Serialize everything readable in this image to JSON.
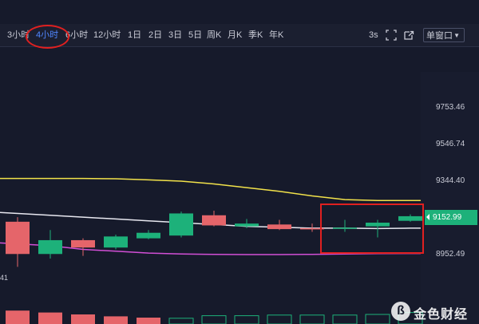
{
  "toolbar": {
    "timeframes": [
      {
        "label": "3小时",
        "active": false
      },
      {
        "label": "4小时",
        "active": true
      },
      {
        "label": "6小时",
        "active": false
      },
      {
        "label": "12小时",
        "active": false
      },
      {
        "label": "1日",
        "active": false
      },
      {
        "label": "2日",
        "active": false
      },
      {
        "label": "3日",
        "active": false
      },
      {
        "label": "5日",
        "active": false
      },
      {
        "label": "周K",
        "active": false
      },
      {
        "label": "月K",
        "active": false
      },
      {
        "label": "季K",
        "active": false
      },
      {
        "label": "年K",
        "active": false
      }
    ],
    "interval": "3s",
    "window_mode": "单窗口"
  },
  "yaxis": {
    "ticks": [
      "9753.46",
      "9546.74",
      "9344.40",
      "8952.49"
    ]
  },
  "current_price": "9152.99",
  "left_fragment": "41",
  "watermark": "金色财经",
  "colors": {
    "up": "#1db17a",
    "down": "#e5656a",
    "ma_yellow": "#f2e24a",
    "ma_white": "#e8e8f0",
    "ma_magenta": "#d24fd6",
    "annotation": "#e02020"
  },
  "chart_data": {
    "type": "candlestick",
    "yticks": [
      9753.46,
      9546.74,
      9344.4,
      8952.49
    ],
    "candles": [
      {
        "dir": "down",
        "open": 9135,
        "close": 8960,
        "high": 9160,
        "low": 8890
      },
      {
        "dir": "up",
        "open": 8960,
        "close": 9035,
        "high": 9090,
        "low": 8935
      },
      {
        "dir": "down",
        "open": 9035,
        "close": 8995,
        "high": 9045,
        "low": 8950
      },
      {
        "dir": "up",
        "open": 8995,
        "close": 9055,
        "high": 9065,
        "low": 8985
      },
      {
        "dir": "up",
        "open": 9045,
        "close": 9075,
        "high": 9090,
        "low": 9040
      },
      {
        "dir": "up",
        "open": 9060,
        "close": 9180,
        "high": 9190,
        "low": 9050
      },
      {
        "dir": "down",
        "open": 9170,
        "close": 9115,
        "high": 9195,
        "low": 9110
      },
      {
        "dir": "up",
        "open": 9110,
        "close": 9125,
        "high": 9150,
        "low": 9100
      },
      {
        "dir": "down",
        "open": 9120,
        "close": 9095,
        "high": 9145,
        "low": 9090
      },
      {
        "dir": "down",
        "open": 9100,
        "close": 9095,
        "high": 9125,
        "low": 9080
      },
      {
        "dir": "up",
        "open": 9097,
        "close": 9103,
        "high": 9145,
        "low": 9080
      },
      {
        "dir": "up",
        "open": 9110,
        "close": 9130,
        "high": 9145,
        "low": 9050
      },
      {
        "dir": "up",
        "open": 9140,
        "close": 9165,
        "high": 9175,
        "low": 9135
      }
    ],
    "volume": [
      {
        "dir": "down",
        "value": 4.2
      },
      {
        "dir": "down",
        "value": 3.6
      },
      {
        "dir": "down",
        "value": 3.0
      },
      {
        "dir": "down",
        "value": 2.4
      },
      {
        "dir": "down",
        "value": 2.0
      },
      {
        "dir": "up",
        "value": 1.8
      },
      {
        "dir": "up",
        "value": 2.6
      },
      {
        "dir": "up",
        "value": 2.6
      },
      {
        "dir": "up",
        "value": 2.8
      },
      {
        "dir": "up",
        "value": 2.8
      },
      {
        "dir": "up",
        "value": 2.8
      },
      {
        "dir": "up",
        "value": 3.0
      },
      {
        "dir": "up",
        "value": 3.6
      }
    ],
    "moving_averages": [
      {
        "color": "#f2e24a",
        "values": [
          9370,
          9370,
          9370,
          9368,
          9362,
          9355,
          9340,
          9320,
          9300,
          9275,
          9255,
          9250,
          9250
        ]
      },
      {
        "color": "#e8e8f0",
        "values": [
          9185,
          9170,
          9160,
          9150,
          9140,
          9130,
          9120,
          9110,
          9105,
          9100,
          9100,
          9098,
          9100
        ]
      },
      {
        "color": "#d24fd6",
        "values": [
          9020,
          9005,
          8985,
          8975,
          8965,
          8960,
          8958,
          8957,
          8957,
          8958,
          8960,
          8962,
          8963
        ]
      }
    ]
  }
}
